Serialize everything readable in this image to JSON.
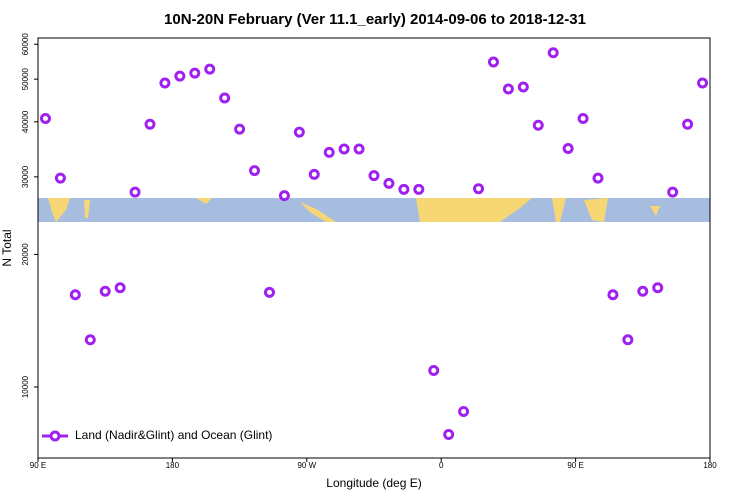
{
  "chart_data": {
    "type": "scatter",
    "title": "10N-20N February (Ver 11.1_early)   2014-09-06 to 2018-12-31",
    "x_label": "Longitude (deg E)",
    "y_label": "N Total",
    "xlim": [
      90,
      540
    ],
    "xticks": [
      {
        "value": 90,
        "label": "90 E"
      },
      180,
      {
        "value": 270,
        "label": "90 W"
      },
      {
        "value": 360,
        "label": "0"
      },
      {
        "value": 450,
        "label": "90 E"
      },
      {
        "value": 540,
        "label": "180"
      }
    ],
    "ylim": [
      6900,
      62000
    ],
    "log_scale": true,
    "yticks": [
      10000,
      20000,
      30000,
      40000,
      50000,
      60000
    ],
    "legend": "bottom-left",
    "series": [
      {
        "name": "Land (Nadir&Glint) and Ocean (Glint)",
        "color": "#a020f0",
        "x": [
          95,
          105,
          115,
          125,
          135,
          145,
          155,
          165,
          175,
          185,
          195,
          205,
          215,
          225,
          235,
          245,
          255,
          265,
          275,
          285,
          295,
          305,
          315,
          325,
          335,
          345,
          355,
          365,
          375,
          385,
          395,
          405,
          415,
          425,
          435,
          445,
          455,
          465,
          475,
          485,
          495,
          505,
          515,
          525,
          535
        ],
        "values": [
          40700,
          29800,
          16200,
          12800,
          16500,
          16800,
          27700,
          39500,
          49000,
          50800,
          51600,
          52700,
          45300,
          38500,
          31000,
          16400,
          27200,
          37900,
          30400,
          34100,
          34700,
          34700,
          30200,
          29000,
          28100,
          28100,
          10900,
          7800,
          8800,
          28200,
          54700,
          47500,
          48000,
          39300,
          57400,
          34800,
          40700,
          29800,
          16200,
          12800,
          16500,
          16800,
          27700,
          39500,
          49000
        ]
      }
    ]
  }
}
